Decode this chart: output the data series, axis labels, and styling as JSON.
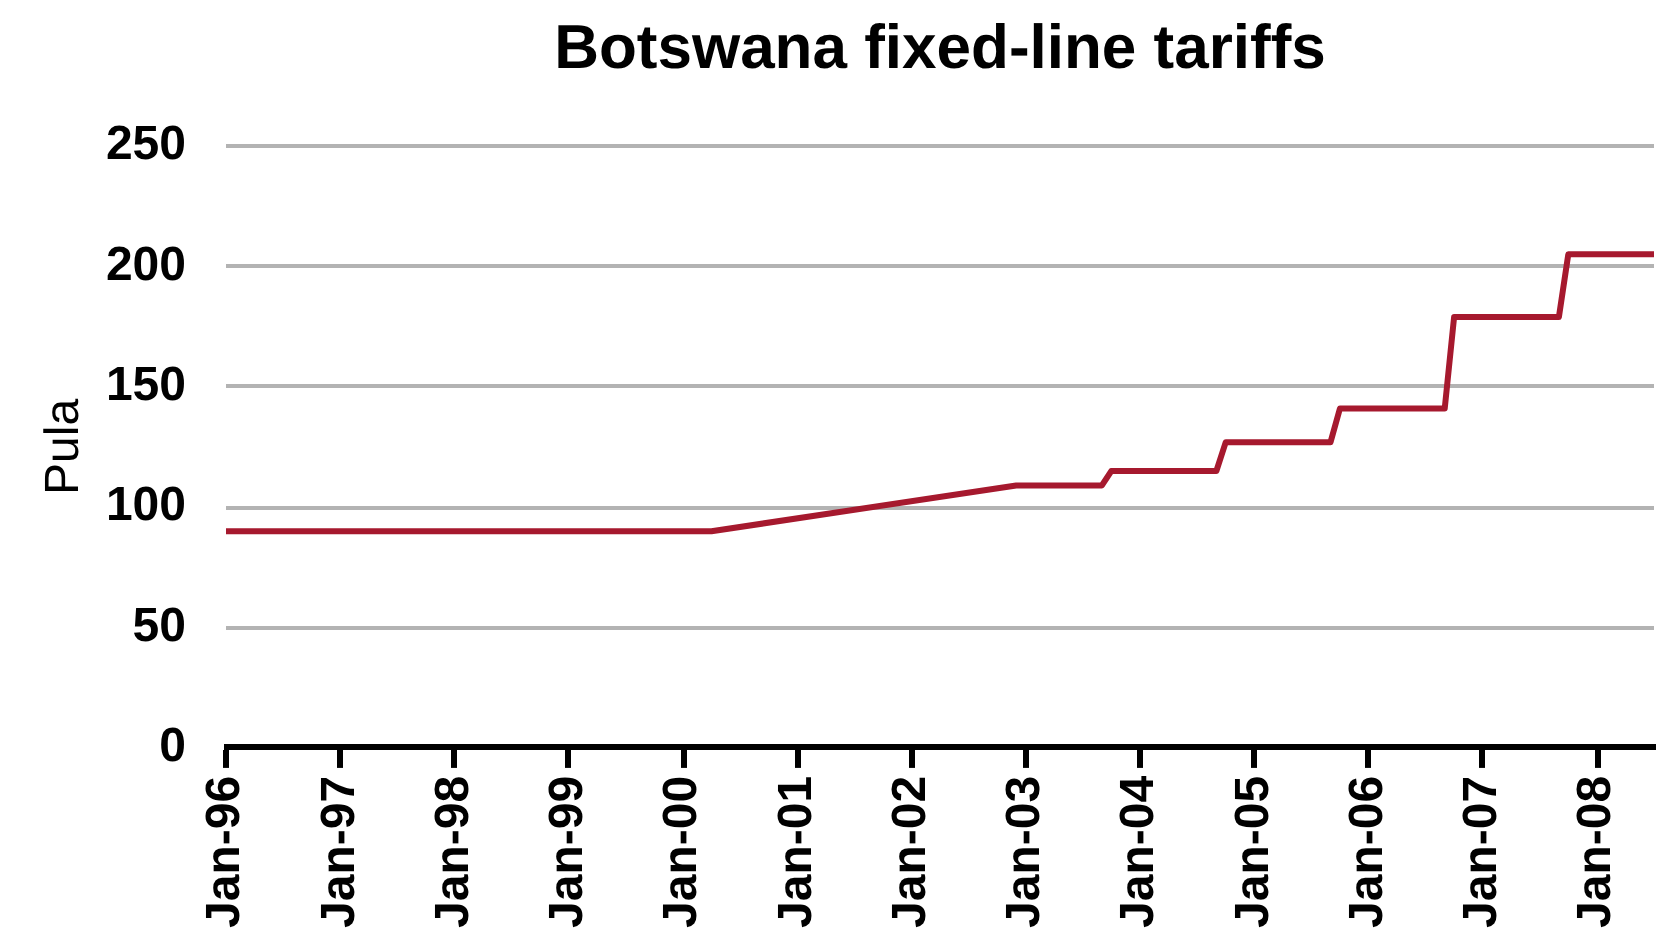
{
  "chart_data": {
    "type": "line",
    "title": "Botswana fixed-line tariffs",
    "ylabel": "Pula",
    "x": [
      "1996-01",
      "2000-04",
      "2002-12",
      "2003-09",
      "2003-10",
      "2004-09",
      "2004-10",
      "2005-09",
      "2005-10",
      "2006-09",
      "2006-10",
      "2007-09",
      "2007-10",
      "2008-07"
    ],
    "series": [
      {
        "color": "#a6192e",
        "values": [
          90,
          90,
          109,
          109,
          115,
          115,
          127,
          127,
          141,
          141,
          179,
          179,
          205,
          205
        ]
      }
    ],
    "xlim": [
      "1996-01",
      "2008-07"
    ],
    "xticks": [
      {
        "value": "1996-01",
        "label": "Jan-96"
      },
      {
        "value": "1997-01",
        "label": "Jan-97"
      },
      {
        "value": "1998-01",
        "label": "Jan-98"
      },
      {
        "value": "1999-01",
        "label": "Jan-99"
      },
      {
        "value": "2000-01",
        "label": "Jan-00"
      },
      {
        "value": "2001-01",
        "label": "Jan-01"
      },
      {
        "value": "2002-01",
        "label": "Jan-02"
      },
      {
        "value": "2003-01",
        "label": "Jan-03"
      },
      {
        "value": "2004-01",
        "label": "Jan-04"
      },
      {
        "value": "2005-01",
        "label": "Jan-05"
      },
      {
        "value": "2006-01",
        "label": "Jan-06"
      },
      {
        "value": "2007-01",
        "label": "Jan-07"
      },
      {
        "value": "2008-01",
        "label": "Jan-08"
      }
    ],
    "ylim": [
      0,
      250
    ],
    "yticks": [
      0,
      50,
      100,
      150,
      200,
      250
    ],
    "grid": "y",
    "legend": false,
    "marker": "none",
    "line_style": "solid"
  }
}
